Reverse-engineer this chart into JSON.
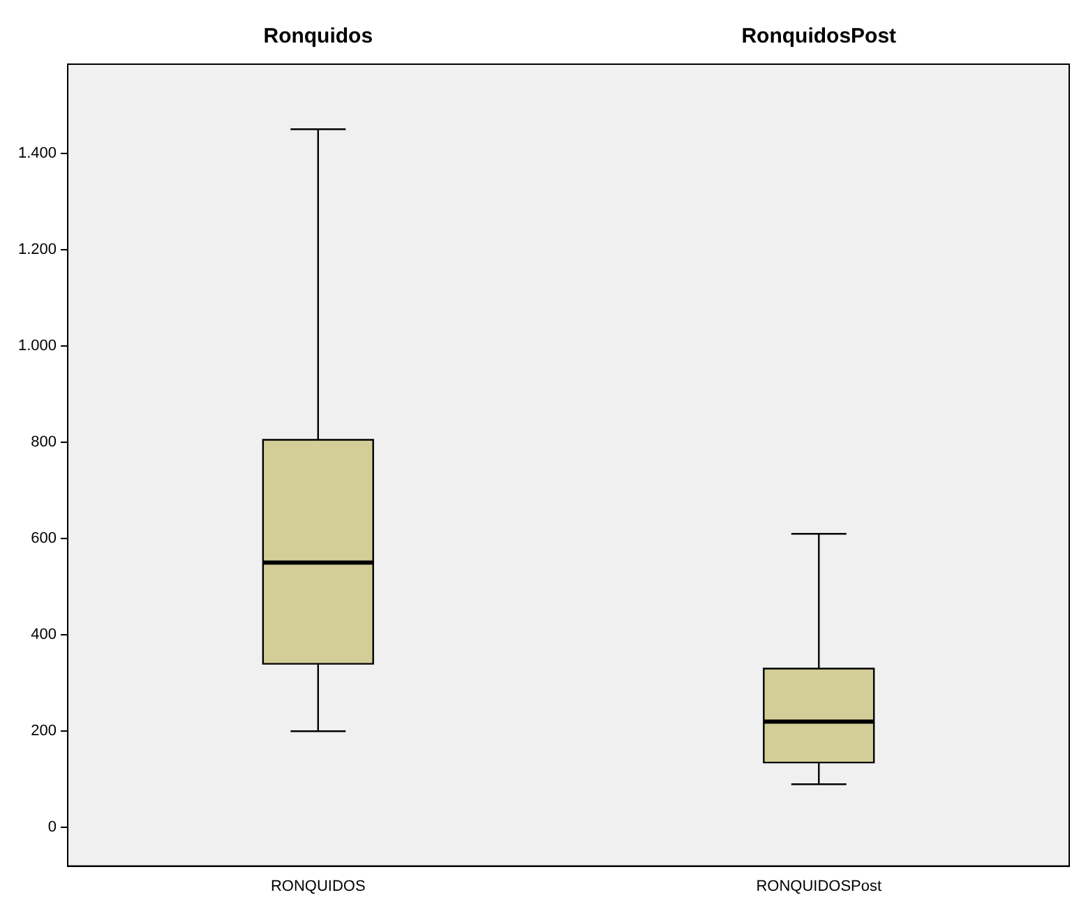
{
  "chart_data": {
    "type": "box",
    "categories": [
      "RONQUIDOS",
      "RONQUIDOSPost"
    ],
    "annotations": [
      "Ronquidos",
      "RonquidosPost"
    ],
    "color": "#d3ce97",
    "boxes": [
      {
        "low": 200,
        "q1": 340,
        "median": 550,
        "q3": 805,
        "high": 1450
      },
      {
        "low": 90,
        "q1": 135,
        "median": 220,
        "q3": 330,
        "high": 610
      }
    ],
    "ylim": [
      -80,
      1585
    ],
    "yticks": [
      0,
      200,
      400,
      600,
      800,
      {
        "value": 1000,
        "label": "1.000"
      },
      {
        "value": 1200,
        "label": "1.200"
      },
      {
        "value": 1400,
        "label": "1.400"
      }
    ],
    "grid": false
  }
}
